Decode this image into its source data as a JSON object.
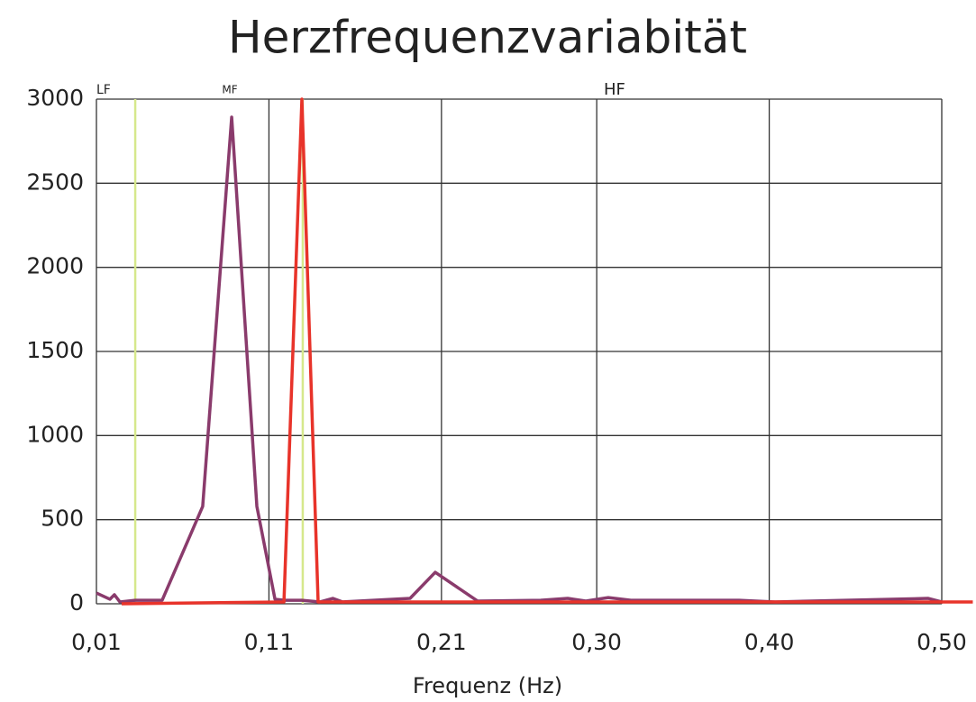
{
  "chart_data": {
    "type": "line",
    "title": "Herzfrequenzvariabität",
    "xlabel": "Frequenz  (Hz)",
    "annotations": [
      "LF",
      "MF",
      "HF"
    ],
    "band_lines": {
      "color": "#d6e88c",
      "x": [
        0.0325,
        0.1296
      ]
    },
    "xlim": [
      0.01,
      0.5
    ],
    "xticks": [
      {
        "value": 0.01,
        "label": "0,01"
      },
      {
        "value": 0.11,
        "label": "0,11"
      },
      {
        "value": 0.21,
        "label": "0,21"
      },
      {
        "value": 0.3,
        "label": "0,30"
      },
      {
        "value": 0.4,
        "label": "0,40"
      },
      {
        "value": 0.5,
        "label": "0,50"
      }
    ],
    "ylim": [
      0,
      3000
    ],
    "yticks": [
      0,
      500,
      1000,
      1500,
      2000,
      2500,
      3000
    ],
    "grid": true,
    "series": [
      {
        "color": "#8a3b6c",
        "x": [
          0.01,
          0.0178,
          0.0204,
          0.0236,
          0.0325,
          0.0481,
          0.0716,
          0.0884,
          0.103,
          0.1135,
          0.119,
          0.129,
          0.1396,
          0.147,
          0.1526,
          0.1918,
          0.2064,
          0.231,
          0.2675,
          0.2832,
          0.2937,
          0.3067,
          0.3198,
          0.3825,
          0.4034,
          0.4922,
          0.5
        ],
        "values": [
          64,
          27,
          54,
          11,
          21,
          21,
          579,
          2893,
          579,
          27,
          21,
          21,
          11,
          32,
          11,
          32,
          187,
          16,
          21,
          32,
          16,
          37,
          21,
          21,
          11,
          32,
          11
        ]
      },
      {
        "color": "#e8332a",
        "x": [
          0.0246,
          0.1187,
          0.1291,
          0.1385,
          0.518
        ],
        "values": [
          0,
          11,
          3000,
          11,
          11
        ]
      }
    ]
  }
}
